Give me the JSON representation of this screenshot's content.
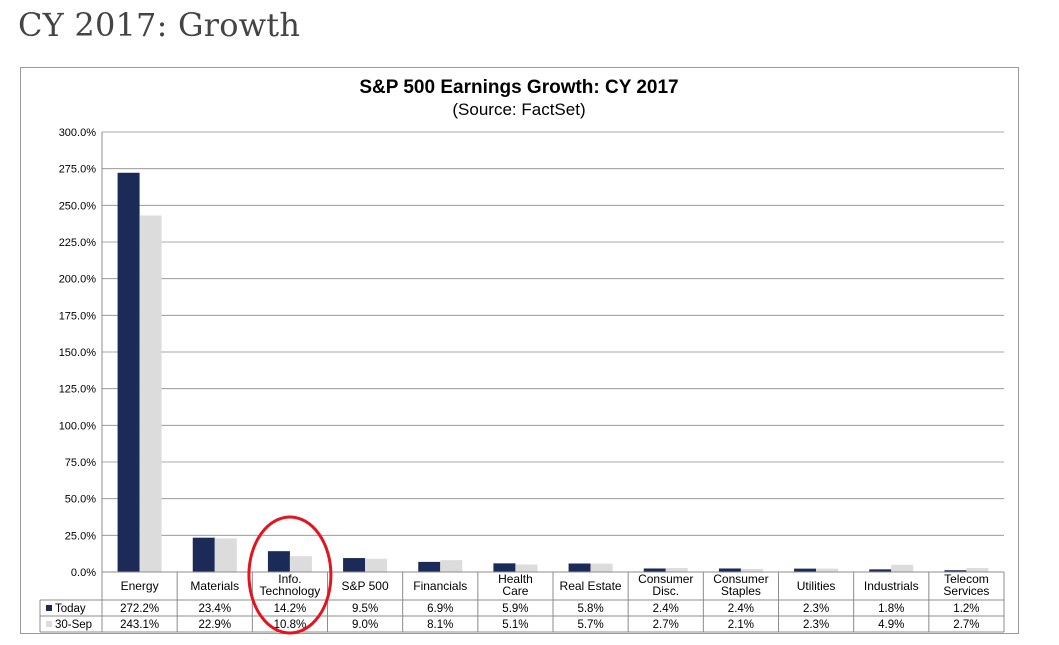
{
  "page": {
    "heading": "CY 2017: Growth"
  },
  "chart_data": {
    "type": "bar",
    "title": "S&P 500 Earnings Growth: CY 2017",
    "subtitle": "(Source: FactSet)",
    "categories": [
      "Energy",
      "Materials",
      "Info. Technology",
      "S&P 500",
      "Financials",
      "Health Care",
      "Real Estate",
      "Consumer Disc.",
      "Consumer Staples",
      "Utilities",
      "Industrials",
      "Telecom Services"
    ],
    "category_lines": [
      [
        "Energy"
      ],
      [
        "Materials"
      ],
      [
        "Info.",
        "Technology"
      ],
      [
        "S&P 500"
      ],
      [
        "Financials"
      ],
      [
        "Health",
        "Care"
      ],
      [
        "Real Estate"
      ],
      [
        "Consumer",
        "Disc."
      ],
      [
        "Consumer",
        "Staples"
      ],
      [
        "Utilities"
      ],
      [
        "Industrials"
      ],
      [
        "Telecom",
        "Services"
      ]
    ],
    "series": [
      {
        "name": "Today",
        "color": "#1b2a57",
        "values": [
          272.2,
          23.4,
          14.2,
          9.5,
          6.9,
          5.9,
          5.8,
          2.4,
          2.4,
          2.3,
          1.8,
          1.2
        ],
        "labels": [
          "272.2%",
          "23.4%",
          "14.2%",
          "9.5%",
          "6.9%",
          "5.9%",
          "5.8%",
          "2.4%",
          "2.4%",
          "2.3%",
          "1.8%",
          "1.2%"
        ]
      },
      {
        "name": "30-Sep",
        "color": "#dcdcdc",
        "values": [
          243.1,
          22.9,
          10.8,
          9.0,
          8.1,
          5.1,
          5.7,
          2.7,
          2.1,
          2.3,
          4.9,
          2.7
        ],
        "labels": [
          "243.1%",
          "22.9%",
          "10.8%",
          "9.0%",
          "8.1%",
          "5.1%",
          "5.7%",
          "2.7%",
          "2.1%",
          "2.3%",
          "4.9%",
          "2.7%"
        ]
      }
    ],
    "ylim": [
      0,
      300
    ],
    "yticks": [
      0,
      25,
      50,
      75,
      100,
      125,
      150,
      175,
      200,
      225,
      250,
      275,
      300
    ],
    "ytick_labels": [
      "0.0%",
      "25.0%",
      "50.0%",
      "75.0%",
      "100.0%",
      "125.0%",
      "150.0%",
      "175.0%",
      "200.0%",
      "225.0%",
      "250.0%",
      "275.0%",
      "300.0%"
    ],
    "grid": true,
    "legend": "data-table-left",
    "highlight": {
      "category": "Info. Technology",
      "color": "#e3141e"
    }
  }
}
